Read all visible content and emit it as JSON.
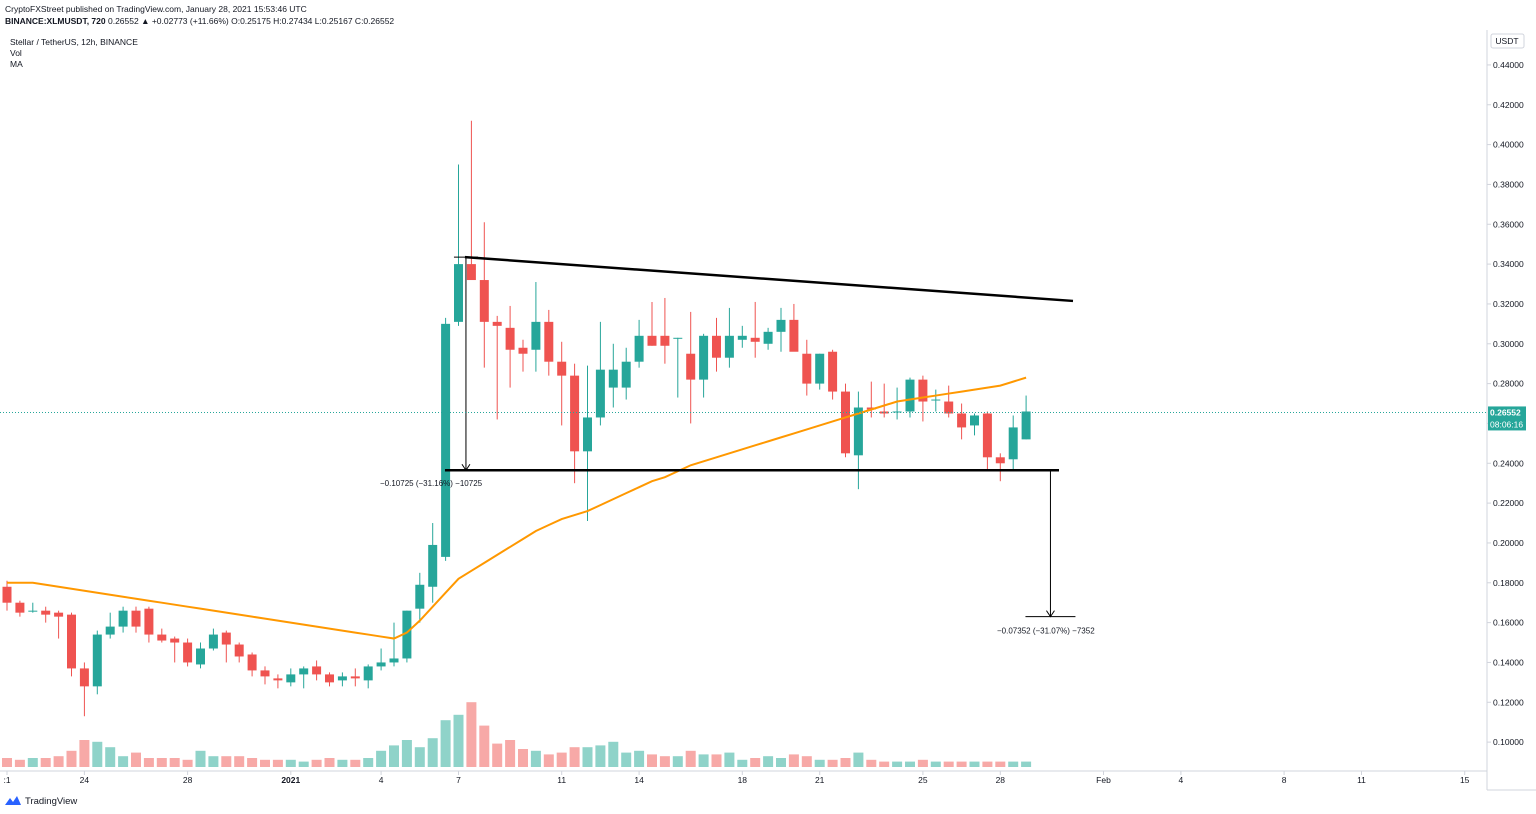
{
  "header": {
    "publish_line": "CryptoFXStreet published on TradingView.com, January 28, 2021 15:53:46 UTC",
    "symbol": "BINANCE:XLMUSDT, 720",
    "change": "0.26552 ▲ +0.02773 (+11.66%)",
    "ohlc": "O:0.25175 H:0.27434 L:0.25167 C:0.26552"
  },
  "legend": {
    "title": "Stellar / TetherUS, 12h, BINANCE",
    "vol": "Vol",
    "ma": "MA"
  },
  "axis": {
    "currency": "USDT",
    "last_price": "0.26552",
    "countdown": "08:06:16"
  },
  "annotations": {
    "upper": "−0.10725 (−31.16%) −10725",
    "lower": "−0.07352 (−31.07%) −7352"
  },
  "footer": {
    "brand": "TradingView"
  },
  "colors": {
    "up": "#26a69a",
    "down": "#ef5350",
    "ma": "#ff9800",
    "trend": "#000000"
  },
  "chart_data": {
    "type": "candlestick",
    "title": "Stellar / TetherUS, 12h, BINANCE",
    "y_ticks": [
      "0.10000",
      "0.12000",
      "0.14000",
      "0.16000",
      "0.18000",
      "0.20000",
      "0.22000",
      "0.24000",
      "0.26000",
      "0.28000",
      "0.30000",
      "0.32000",
      "0.34000",
      "0.36000",
      "0.38000",
      "0.40000",
      "0.42000",
      "0.44000"
    ],
    "y_range": [
      0.0855,
      0.4485
    ],
    "x_ticks": [
      {
        "label": ":1",
        "i": 0
      },
      {
        "label": "24",
        "i": 6
      },
      {
        "label": "28",
        "i": 14
      },
      {
        "label": "2021",
        "i": 22
      },
      {
        "label": "4",
        "i": 29
      },
      {
        "label": "7",
        "i": 35
      },
      {
        "label": "11",
        "i": 43
      },
      {
        "label": "14",
        "i": 49
      },
      {
        "label": "18",
        "i": 57
      },
      {
        "label": "21",
        "i": 63
      },
      {
        "label": "25",
        "i": 71
      },
      {
        "label": "28",
        "i": 77
      },
      {
        "label": "Feb",
        "i": 85
      },
      {
        "label": "4",
        "i": 91
      },
      {
        "label": "8",
        "i": 99
      },
      {
        "label": "11",
        "i": 105
      },
      {
        "label": "15",
        "i": 113
      }
    ],
    "candles": [
      [
        0.178,
        0.181,
        0.166,
        0.17
      ],
      [
        0.17,
        0.171,
        0.163,
        0.165
      ],
      [
        0.166,
        0.17,
        0.165,
        0.166
      ],
      [
        0.166,
        0.168,
        0.16,
        0.164
      ],
      [
        0.165,
        0.166,
        0.152,
        0.163
      ],
      [
        0.164,
        0.165,
        0.133,
        0.137
      ],
      [
        0.137,
        0.14,
        0.113,
        0.128
      ],
      [
        0.128,
        0.156,
        0.124,
        0.154
      ],
      [
        0.154,
        0.165,
        0.152,
        0.158
      ],
      [
        0.158,
        0.168,
        0.155,
        0.166
      ],
      [
        0.166,
        0.168,
        0.155,
        0.158
      ],
      [
        0.167,
        0.168,
        0.15,
        0.154
      ],
      [
        0.154,
        0.157,
        0.15,
        0.151
      ],
      [
        0.152,
        0.153,
        0.14,
        0.15
      ],
      [
        0.15,
        0.152,
        0.138,
        0.14
      ],
      [
        0.139,
        0.15,
        0.137,
        0.147
      ],
      [
        0.147,
        0.157,
        0.146,
        0.154
      ],
      [
        0.155,
        0.156,
        0.14,
        0.149
      ],
      [
        0.149,
        0.15,
        0.14,
        0.143
      ],
      [
        0.144,
        0.145,
        0.133,
        0.136
      ],
      [
        0.136,
        0.138,
        0.129,
        0.133
      ],
      [
        0.132,
        0.134,
        0.127,
        0.131
      ],
      [
        0.13,
        0.137,
        0.128,
        0.134
      ],
      [
        0.134,
        0.138,
        0.127,
        0.137
      ],
      [
        0.138,
        0.141,
        0.131,
        0.134
      ],
      [
        0.134,
        0.135,
        0.128,
        0.13
      ],
      [
        0.131,
        0.135,
        0.128,
        0.133
      ],
      [
        0.133,
        0.137,
        0.128,
        0.132
      ],
      [
        0.131,
        0.139,
        0.127,
        0.138
      ],
      [
        0.138,
        0.147,
        0.136,
        0.14
      ],
      [
        0.14,
        0.16,
        0.138,
        0.142
      ],
      [
        0.142,
        0.166,
        0.14,
        0.166
      ],
      [
        0.167,
        0.185,
        0.16,
        0.179
      ],
      [
        0.178,
        0.21,
        0.17,
        0.199
      ],
      [
        0.193,
        0.313,
        0.191,
        0.31
      ],
      [
        0.311,
        0.39,
        0.309,
        0.34
      ],
      [
        0.34,
        0.412,
        0.334,
        0.332
      ],
      [
        0.332,
        0.361,
        0.288,
        0.311
      ],
      [
        0.311,
        0.314,
        0.262,
        0.309
      ],
      [
        0.308,
        0.319,
        0.278,
        0.297
      ],
      [
        0.298,
        0.302,
        0.286,
        0.295
      ],
      [
        0.297,
        0.331,
        0.286,
        0.311
      ],
      [
        0.311,
        0.317,
        0.284,
        0.291
      ],
      [
        0.291,
        0.301,
        0.259,
        0.284
      ],
      [
        0.284,
        0.29,
        0.23,
        0.246
      ],
      [
        0.246,
        0.289,
        0.211,
        0.263
      ],
      [
        0.263,
        0.311,
        0.259,
        0.287
      ],
      [
        0.278,
        0.3,
        0.268,
        0.287
      ],
      [
        0.278,
        0.298,
        0.272,
        0.291
      ],
      [
        0.291,
        0.312,
        0.288,
        0.304
      ],
      [
        0.304,
        0.321,
        0.299,
        0.299
      ],
      [
        0.304,
        0.323,
        0.29,
        0.299
      ],
      [
        0.303,
        0.303,
        0.273,
        0.303
      ],
      [
        0.295,
        0.316,
        0.26,
        0.282
      ],
      [
        0.282,
        0.305,
        0.273,
        0.304
      ],
      [
        0.304,
        0.313,
        0.286,
        0.293
      ],
      [
        0.293,
        0.318,
        0.288,
        0.304
      ],
      [
        0.302,
        0.309,
        0.298,
        0.304
      ],
      [
        0.303,
        0.321,
        0.293,
        0.301
      ],
      [
        0.3,
        0.308,
        0.297,
        0.306
      ],
      [
        0.306,
        0.318,
        0.296,
        0.312
      ],
      [
        0.312,
        0.32,
        0.298,
        0.296
      ],
      [
        0.295,
        0.302,
        0.274,
        0.28
      ],
      [
        0.28,
        0.295,
        0.277,
        0.295
      ],
      [
        0.296,
        0.297,
        0.272,
        0.276
      ],
      [
        0.276,
        0.28,
        0.243,
        0.245
      ],
      [
        0.244,
        0.276,
        0.227,
        0.268
      ],
      [
        0.268,
        0.281,
        0.263,
        0.267
      ],
      [
        0.266,
        0.28,
        0.263,
        0.265
      ],
      [
        0.266,
        0.278,
        0.262,
        0.266
      ],
      [
        0.266,
        0.283,
        0.263,
        0.282
      ],
      [
        0.282,
        0.284,
        0.261,
        0.271
      ],
      [
        0.272,
        0.277,
        0.266,
        0.272
      ],
      [
        0.271,
        0.279,
        0.263,
        0.265
      ],
      [
        0.265,
        0.27,
        0.252,
        0.258
      ],
      [
        0.259,
        0.265,
        0.254,
        0.264
      ],
      [
        0.265,
        0.266,
        0.237,
        0.243
      ],
      [
        0.243,
        0.245,
        0.231,
        0.24
      ],
      [
        0.242,
        0.264,
        0.236,
        0.258
      ],
      [
        0.252,
        0.274,
        0.252,
        0.266
      ]
    ],
    "volume": [
      0.5,
      0.4,
      0.5,
      0.5,
      0.6,
      0.9,
      1.5,
      1.4,
      1.1,
      0.6,
      0.8,
      0.5,
      0.5,
      0.5,
      0.4,
      0.9,
      0.6,
      0.6,
      0.6,
      0.5,
      0.4,
      0.4,
      0.4,
      0.3,
      0.4,
      0.5,
      0.4,
      0.4,
      0.5,
      0.9,
      1.2,
      1.5,
      1.1,
      1.6,
      2.6,
      2.9,
      3.6,
      2.3,
      1.3,
      1.5,
      1.0,
      0.9,
      0.7,
      0.8,
      1.1,
      1.1,
      1.2,
      1.4,
      0.8,
      0.9,
      0.7,
      0.6,
      0.6,
      0.9,
      0.7,
      0.7,
      0.8,
      0.4,
      0.5,
      0.6,
      0.5,
      0.7,
      0.6,
      0.4,
      0.4,
      0.5,
      0.8,
      0.4,
      0.3,
      0.3,
      0.3,
      0.4,
      0.3,
      0.3,
      0.3,
      0.3,
      0.3,
      0.3,
      0.3,
      0.3
    ],
    "ma": [
      0.18,
      0.18,
      0.18,
      0.179,
      0.178,
      0.177,
      0.176,
      0.175,
      0.174,
      0.173,
      0.172,
      0.171,
      0.17,
      0.169,
      0.168,
      0.167,
      0.166,
      0.165,
      0.164,
      0.163,
      0.162,
      0.161,
      0.16,
      0.159,
      0.158,
      0.157,
      0.156,
      0.155,
      0.154,
      0.153,
      0.152,
      0.155,
      0.161,
      0.168,
      0.175,
      0.182,
      0.186,
      0.19,
      0.194,
      0.198,
      0.202,
      0.206,
      0.209,
      0.212,
      0.214,
      0.216,
      0.219,
      0.222,
      0.225,
      0.228,
      0.231,
      0.233,
      0.236,
      0.239,
      0.241,
      0.243,
      0.245,
      0.247,
      0.249,
      0.251,
      0.253,
      0.255,
      0.257,
      0.259,
      0.261,
      0.263,
      0.265,
      0.267,
      0.269,
      0.271,
      0.272,
      0.273,
      0.274,
      0.275,
      0.276,
      0.277,
      0.278,
      0.279,
      0.281,
      0.283
    ],
    "lines": {
      "upper_trend": {
        "from": [
          35.5,
          0.3435
        ],
        "to": [
          80,
          0.32
        ]
      },
      "support": {
        "from": [
          35.5,
          0.2365
        ],
        "to": [
          80,
          0.2365
        ]
      },
      "measure_upper": {
        "x": 35.5,
        "from": 0.3435,
        "to": 0.2365
      },
      "measure_lower": {
        "x": 80.5,
        "from": 0.2365,
        "to": 0.163
      }
    },
    "last_price": 0.26552
  }
}
